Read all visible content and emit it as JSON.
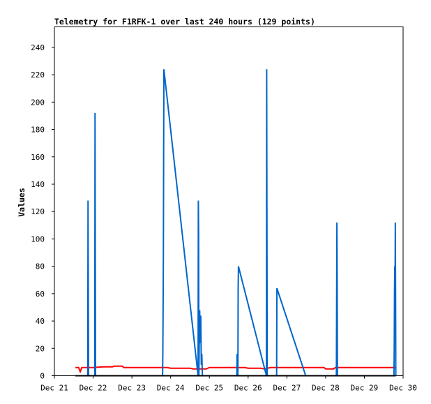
{
  "chart_data": {
    "type": "line",
    "title": "Telemetry for F1RFK-1 over last 240 hours (129 points)",
    "xlabel": "",
    "ylabel": "Values",
    "x_ticks": [
      "Dec 21",
      "Dec 22",
      "Dec 23",
      "Dec 24",
      "Dec 25",
      "Dec 26",
      "Dec 27",
      "Dec 28",
      "Dec 29",
      "Dec 30"
    ],
    "y_ticks": [
      "0",
      "20",
      "40",
      "60",
      "80",
      "100",
      "120",
      "140",
      "160",
      "180",
      "200",
      "220",
      "240"
    ],
    "xlim": [
      "Dec 21 00:00",
      "Dec 30 00:00"
    ],
    "ylim": [
      0,
      255
    ],
    "grid": false,
    "legend": "none",
    "colors": {
      "blue": "#0066cc",
      "red": "#ff0000",
      "black": "#000000"
    },
    "series": [
      {
        "color": "#0066cc",
        "points": [
          [
            "Dec 21 13:00",
            0
          ],
          [
            "Dec 21 20:40",
            0
          ],
          [
            "Dec 21 20:50",
            128
          ],
          [
            "Dec 21 21:00",
            64
          ],
          [
            "Dec 21 21:10",
            0
          ],
          [
            "Dec 22 01:00",
            0
          ],
          [
            "Dec 22 01:10",
            192
          ],
          [
            "Dec 22 01:20",
            96
          ],
          [
            "Dec 22 01:30",
            0
          ],
          [
            "Dec 23 19:00",
            0
          ],
          [
            "Dec 23 19:10",
            16
          ],
          [
            "Dec 23 19:20",
            48
          ],
          [
            "Dec 23 19:30",
            88
          ],
          [
            "Dec 23 19:40",
            160
          ],
          [
            "Dec 23 19:50",
            224
          ],
          [
            "Dec 24 17:00",
            0
          ],
          [
            "Dec 24 17:10",
            128
          ],
          [
            "Dec 24 17:20",
            104
          ],
          [
            "Dec 24 17:30",
            0
          ],
          [
            "Dec 24 18:00",
            48
          ],
          [
            "Dec 24 18:20",
            24
          ],
          [
            "Dec 24 18:40",
            44
          ],
          [
            "Dec 24 19:00",
            8
          ],
          [
            "Dec 24 19:20",
            16
          ],
          [
            "Dec 24 19:40",
            0
          ],
          [
            "Dec 25 17:00",
            0
          ],
          [
            "Dec 25 17:10",
            16
          ],
          [
            "Dec 25 17:20",
            0
          ],
          [
            "Dec 25 17:40",
            0
          ],
          [
            "Dec 25 17:50",
            64
          ],
          [
            "Dec 25 18:00",
            80
          ],
          [
            "Dec 26 11:20",
            0
          ],
          [
            "Dec 26 11:30",
            224
          ],
          [
            "Dec 26 11:40",
            112
          ],
          [
            "Dec 26 11:50",
            0
          ],
          [
            "Dec 26 17:40",
            0
          ],
          [
            "Dec 26 17:50",
            64
          ],
          [
            "Dec 27 11:40",
            0
          ],
          [
            "Dec 28 06:40",
            0
          ],
          [
            "Dec 28 06:50",
            56
          ],
          [
            "Dec 28 07:00",
            112
          ],
          [
            "Dec 28 07:10",
            64
          ],
          [
            "Dec 28 07:20",
            0
          ],
          [
            "Dec 29 18:20",
            0
          ],
          [
            "Dec 29 18:30",
            20
          ],
          [
            "Dec 29 18:40",
            60
          ],
          [
            "Dec 29 18:50",
            80
          ],
          [
            "Dec 29 19:00",
            48
          ],
          [
            "Dec 29 19:10",
            112
          ],
          [
            "Dec 29 19:20",
            64
          ],
          [
            "Dec 29 19:30",
            0
          ]
        ]
      },
      {
        "color": "#ff0000",
        "points": [
          [
            "Dec 21 13:00",
            6
          ],
          [
            "Dec 21 15:00",
            6
          ],
          [
            "Dec 21 16:00",
            3
          ],
          [
            "Dec 21 17:00",
            6
          ],
          [
            "Dec 22 00:00",
            6
          ],
          [
            "Dec 22 06:00",
            6.5
          ],
          [
            "Dec 22 12:00",
            6.5
          ],
          [
            "Dec 22 13:00",
            7
          ],
          [
            "Dec 22 18:00",
            7
          ],
          [
            "Dec 22 19:00",
            6
          ],
          [
            "Dec 23 22:00",
            6
          ],
          [
            "Dec 24 00:00",
            5.5
          ],
          [
            "Dec 24 12:00",
            5.5
          ],
          [
            "Dec 24 14:00",
            5
          ],
          [
            "Dec 24 22:00",
            5
          ],
          [
            "Dec 25 00:00",
            6
          ],
          [
            "Dec 25 22:00",
            6
          ],
          [
            "Dec 26 00:00",
            5.5
          ],
          [
            "Dec 26 08:00",
            5.5
          ],
          [
            "Dec 26 10:00",
            5
          ],
          [
            "Dec 26 14:00",
            6
          ],
          [
            "Dec 27 23:00",
            6
          ],
          [
            "Dec 28 00:00",
            5
          ],
          [
            "Dec 28 05:00",
            5
          ],
          [
            "Dec 28 06:00",
            6
          ],
          [
            "Dec 29 19:30",
            6
          ]
        ]
      },
      {
        "color": "#000000",
        "points": [
          [
            "Dec 21 13:00",
            0
          ],
          [
            "Dec 29 19:30",
            0
          ]
        ]
      }
    ]
  }
}
